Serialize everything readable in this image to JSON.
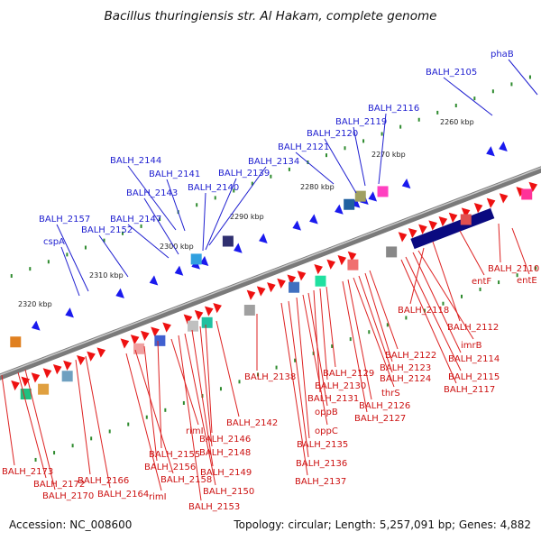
{
  "title": "Bacillus thuringiensis str. Al Hakam, complete genome",
  "accession": "Accession: NC_008600",
  "stats": "Topology: circular; Length: 5,257,091 bp; Genes: 4,882",
  "colors": {
    "backbone": "#7a7a7a",
    "forward_gene": "#ee1111",
    "reverse_gene": "#1a1aee",
    "forward_label": "#cc1111",
    "reverse_label": "#1f1fd0",
    "tick": "#2e8b2e"
  },
  "kbp_ticks": [
    "2260 kbp",
    "2270 kbp",
    "2280 kbp",
    "2290 kbp",
    "2300 kbp",
    "2310 kbp",
    "2320 kbp"
  ],
  "reverse_genes": [
    "phaB",
    "BALH_2105",
    "BALH_2116",
    "BALH_2119",
    "BALH_2120",
    "BALH_2121",
    "BALH_2134",
    "BALH_2139",
    "BALH_2140",
    "BALH_2141",
    "BALH_2143",
    "BALH_2144",
    "BALH_2147",
    "BALH_2152",
    "BALH_2157",
    "cspA"
  ],
  "forward_genes": [
    "BALH_2110",
    "entE",
    "entF",
    "BALH_2112",
    "BALH_2118",
    "imrB",
    "BALH_2114",
    "BALH_2115",
    "BALH_2117",
    "BALH_2122",
    "BALH_2123",
    "BALH_2124",
    "thrS",
    "BALH_2126",
    "BALH_2127",
    "BALH_2129",
    "BALH_2130",
    "BALH_2131",
    "oppB",
    "oppC",
    "BALH_2135",
    "BALH_2136",
    "BALH_2137",
    "BALH_2138",
    "BALH_2142",
    "BALH_2146",
    "BALH_2148",
    "BALH_2149",
    "BALH_2150",
    "BALH_2153",
    "rimI",
    "BALH_2155",
    "BALH_2156",
    "BALH_2158",
    "rimI",
    "BALH_2164",
    "BALH_2166",
    "BALH_2170",
    "BALH_2172",
    "BALH_2173"
  ]
}
